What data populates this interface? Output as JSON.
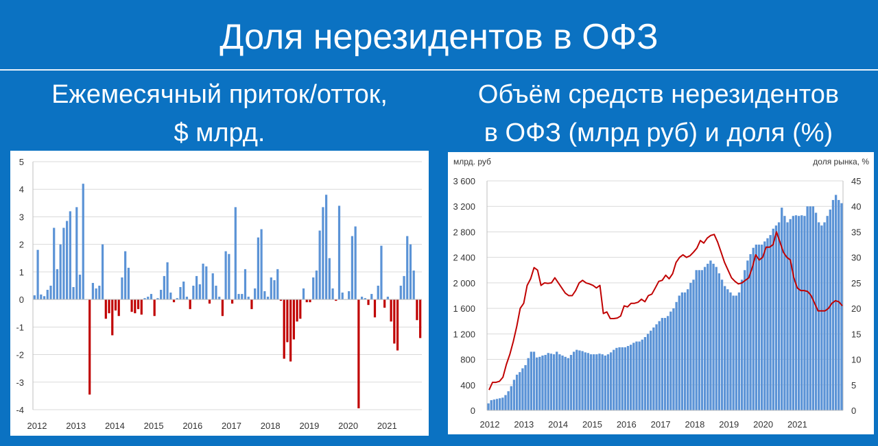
{
  "header": {
    "title": "Доля нерезидентов в ОФЗ",
    "left_subtitle_line1": "Ежемесячный приток/отток,",
    "left_subtitle_line2": "$ млрд.",
    "right_subtitle_line1": "Объём средств нерезидентов",
    "right_subtitle_line2": "в ОФЗ (млрд руб) и доля (%)"
  },
  "colors": {
    "background": "#0b72c2",
    "bar_blue": "#5b93d6",
    "bar_red": "#c00000",
    "line_red": "#c00000",
    "grid": "#d9d9d9"
  },
  "chart_data": [
    {
      "type": "bar",
      "title": "",
      "xlabel": "",
      "ylabel": "",
      "ylim": [
        -4,
        5
      ],
      "yticks": [
        "5",
        "4",
        "3",
        "2",
        "1",
        "0",
        "-1",
        "-2",
        "-3",
        "-4"
      ],
      "year_labels": [
        "2012",
        "2013",
        "2014",
        "2015",
        "2016",
        "2017",
        "2018",
        "2019",
        "2020",
        "2021"
      ],
      "grid": true,
      "series": [
        {
          "values": [
            0.15,
            1.8,
            0.18,
            0.12,
            0.35,
            0.5,
            2.6,
            1.1,
            2.0,
            2.6,
            2.85,
            3.2,
            0.45,
            3.35,
            0.9,
            4.2,
            0.0,
            -3.45,
            0.6,
            0.4,
            0.5,
            2.0,
            -0.7,
            -0.5,
            -1.3,
            -0.4,
            -0.6,
            0.8,
            1.75,
            1.15,
            -0.45,
            -0.5,
            -0.35,
            -0.55,
            0.05,
            0.1,
            0.2,
            -0.6,
            0.05,
            0.35,
            0.85,
            1.35,
            0.25,
            -0.1,
            0.05,
            0.45,
            0.65,
            0.1,
            -0.35,
            0.5,
            0.85,
            0.55,
            1.3,
            1.2,
            -0.15,
            0.95,
            0.5,
            0.1,
            -0.6,
            1.75,
            1.65,
            -0.15,
            3.35,
            0.2,
            0.2,
            1.1,
            0.1,
            -0.35,
            0.4,
            2.25,
            2.55,
            0.3,
            0.1,
            0.8,
            0.7,
            1.1,
            -0.05,
            -2.15,
            -1.55,
            -2.25,
            -1.45,
            -0.8,
            -0.7,
            0.4,
            -0.1,
            -0.1,
            0.8,
            1.05,
            2.5,
            3.35,
            3.8,
            1.5,
            0.4,
            -0.05,
            3.4,
            0.25,
            0.0,
            0.3,
            2.3,
            2.65,
            -3.95,
            0.1,
            0.05,
            -0.2,
            0.2,
            -0.65,
            0.5,
            1.95,
            -0.3,
            0.1,
            -0.8,
            -1.6,
            -1.85,
            0.5,
            0.85,
            2.3,
            2.0,
            1.05,
            -0.75,
            -1.4
          ]
        }
      ]
    },
    {
      "type": "bar+line",
      "title": "",
      "y_left_label": "млрд. руб",
      "y_right_label": "доля рынка, %",
      "y_left_ticks": [
        "3 600",
        "3 200",
        "2 800",
        "2 400",
        "2 000",
        "1 600",
        "1 200",
        "800",
        "400",
        "0"
      ],
      "y_right_ticks": [
        "45",
        "40",
        "35",
        "30",
        "25",
        "20",
        "15",
        "10",
        "5",
        "0"
      ],
      "ylim_left": [
        0,
        3600
      ],
      "ylim_right": [
        0,
        45
      ],
      "year_labels": [
        "2012",
        "2013",
        "2014",
        "2015",
        "2016",
        "2017",
        "2018",
        "2019",
        "2020",
        "2021"
      ],
      "grid": true,
      "series": [
        {
          "type": "bar",
          "axis": "left",
          "values": [
            110,
            160,
            170,
            180,
            190,
            200,
            240,
            300,
            380,
            480,
            560,
            600,
            660,
            710,
            820,
            920,
            920,
            830,
            840,
            860,
            870,
            900,
            890,
            880,
            920,
            880,
            860,
            840,
            820,
            870,
            920,
            950,
            940,
            930,
            910,
            900,
            880,
            880,
            880,
            890,
            880,
            860,
            880,
            910,
            950,
            980,
            990,
            990,
            990,
            1010,
            1030,
            1060,
            1080,
            1080,
            1110,
            1150,
            1200,
            1250,
            1300,
            1350,
            1400,
            1450,
            1450,
            1480,
            1550,
            1600,
            1700,
            1800,
            1850,
            1850,
            1900,
            2000,
            2050,
            2200,
            2200,
            2200,
            2250,
            2300,
            2350,
            2300,
            2250,
            2150,
            2050,
            1950,
            1900,
            1850,
            1800,
            1800,
            1850,
            2050,
            2200,
            2350,
            2450,
            2550,
            2600,
            2600,
            2600,
            2650,
            2700,
            2750,
            2850,
            2900,
            2950,
            3180,
            3050,
            2950,
            3000,
            3050,
            3060,
            3050,
            3060,
            3050,
            3200,
            3200,
            3200,
            3100,
            2950,
            2900,
            2950,
            3050,
            3150,
            3300,
            3380,
            3300,
            3250
          ]
        },
        {
          "type": "line",
          "axis": "right",
          "values": [
            4.0,
            5.5,
            5.5,
            5.7,
            6.5,
            9,
            11,
            13.5,
            16.5,
            20,
            21,
            24.5,
            25.8,
            28,
            27.5,
            24.5,
            25,
            24.9,
            25,
            26,
            25,
            24,
            23,
            22.5,
            22.5,
            23.5,
            25,
            25.5,
            25,
            24.8,
            24.5,
            24,
            24.5,
            19,
            19.3,
            18,
            18,
            18.1,
            18.5,
            20.5,
            20.3,
            21,
            21,
            21.2,
            21.8,
            21.3,
            22.5,
            22.8,
            24,
            25.3,
            25.5,
            26.5,
            25.8,
            26.8,
            29,
            30,
            30.5,
            30,
            30.3,
            31,
            31.8,
            33.3,
            32.8,
            33.8,
            34.3,
            34.5,
            33,
            31,
            29,
            27.5,
            26,
            25.3,
            24.8,
            25,
            25.5,
            26,
            28,
            30.5,
            29.5,
            30,
            32,
            32,
            32.5,
            35,
            33,
            31,
            30,
            29.5,
            26,
            24,
            23.5,
            23.5,
            23.3,
            22.5,
            21,
            19.5,
            19.5,
            19.5,
            20,
            21,
            21.5,
            21.3,
            20.5
          ]
        }
      ]
    }
  ]
}
